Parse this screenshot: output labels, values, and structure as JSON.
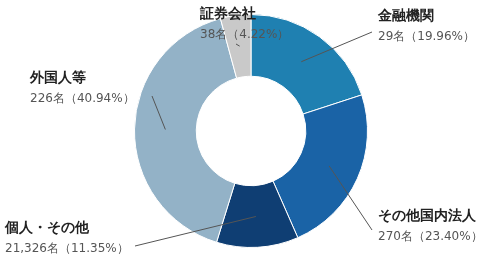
{
  "chart_data": {
    "type": "doughnut",
    "categories": [
      "金融機関",
      "その他国内法人",
      "個人・その他",
      "外国人等",
      "証券会社"
    ],
    "values": [
      19.96,
      23.4,
      11.35,
      40.94,
      4.22
    ],
    "value_labels": [
      "29名（19.96%）",
      "270名（23.40%）",
      "21,326名（11.35%）",
      "226名（40.94%）",
      "38名（4.22%）"
    ],
    "colors": [
      "#1f80b1",
      "#1a63a6",
      "#0f3e73",
      "#93b2c7",
      "#c9c9c9"
    ],
    "data_labels": true
  }
}
